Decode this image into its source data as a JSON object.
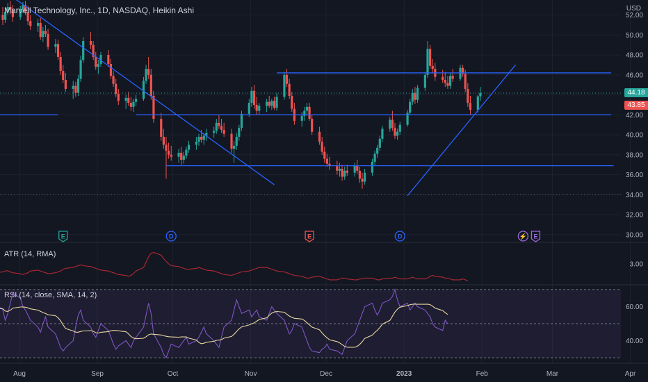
{
  "header": {
    "title": "Marvell Technology, Inc., 1D, NASDAQ, Heikin Ashi",
    "currency": "USD"
  },
  "colors": {
    "background": "#131722",
    "up": "#26a69a",
    "down": "#ef5350",
    "trendline": "#2962ff",
    "atr_line": "#b22833",
    "rsi_line": "#7e57c2",
    "rsi_sma": "#e8d9a0",
    "grid": "#1e222d",
    "axis_text": "#b2b5be"
  },
  "price_tags": {
    "close": "44.18",
    "close_color": "#26a69a",
    "prev": "43.85",
    "prev_color": "#ef5350"
  },
  "events": [
    {
      "letter": "E",
      "icon": "earnings-icon",
      "date": "2022-08-25",
      "color": "#26a69a"
    },
    {
      "letter": "D",
      "icon": "dividend-icon",
      "date": "2022-10-07",
      "color": "#2962ff"
    },
    {
      "letter": "E",
      "icon": "earnings-icon",
      "date": "2022-12-01",
      "color": "#ef5350"
    },
    {
      "letter": "D",
      "icon": "dividend-icon",
      "date": "2023-01-06",
      "color": "#2962ff"
    },
    {
      "letter": "⚡",
      "icon": "split-icon",
      "date": "2023-02-24",
      "color": "#9c6ade"
    },
    {
      "letter": "E",
      "icon": "earnings-icon",
      "date": "2023-03-01",
      "color": "#9c6ade"
    }
  ],
  "indicators": {
    "atr": {
      "title": "ATR (14, RMA)"
    },
    "rsi": {
      "title": "RSI (14, close, SMA, 14, 2)"
    }
  },
  "chart_data": [
    {
      "type": "candlestick",
      "name": "price",
      "scale": "linear",
      "ylim": [
        29.5,
        53.5
      ],
      "y_ticks": [
        "52.00",
        "50.00",
        "48.00",
        "46.00",
        "44.00",
        "42.00",
        "40.00",
        "38.00",
        "36.00",
        "34.00",
        "32.00",
        "30.00"
      ],
      "x_ticks": [
        "Aug",
        "Sep",
        "Oct",
        "Nov",
        "Dec",
        "2023",
        "Feb",
        "Mar",
        "Apr"
      ],
      "x_ticks_bold": [
        "2023"
      ],
      "x_start": "2022-08-01",
      "x_end": "2023-04-05",
      "ohlc_dates_start": "2022-07-27",
      "ohlc": [
        [
          49.0,
          51.0,
          48.5,
          50.6
        ],
        [
          50.6,
          51.8,
          50.0,
          51.2
        ],
        [
          51.2,
          52.5,
          50.8,
          52.0
        ],
        [
          52.0,
          52.8,
          51.0,
          51.5
        ],
        [
          51.5,
          52.6,
          51.2,
          52.3
        ],
        [
          52.3,
          53.2,
          52.0,
          52.8
        ],
        [
          52.8,
          53.4,
          52.1,
          52.5
        ],
        [
          52.5,
          53.0,
          51.3,
          51.8
        ],
        [
          51.8,
          52.9,
          51.5,
          52.6
        ],
        [
          52.6,
          53.3,
          52.2,
          53.0
        ],
        [
          53.0,
          53.4,
          52.0,
          52.3
        ],
        [
          52.3,
          52.9,
          51.0,
          51.4
        ],
        [
          51.4,
          52.0,
          50.5,
          50.9
        ],
        [
          50.9,
          51.6,
          50.3,
          51.2
        ],
        [
          51.2,
          51.7,
          49.5,
          49.8
        ],
        [
          49.8,
          50.8,
          49.3,
          50.4
        ],
        [
          50.4,
          51.0,
          49.8,
          50.1
        ],
        [
          50.1,
          50.6,
          48.5,
          48.8
        ],
        [
          48.8,
          49.6,
          48.2,
          49.1
        ],
        [
          49.1,
          49.5,
          47.5,
          47.8
        ],
        [
          47.8,
          48.3,
          46.0,
          46.4
        ],
        [
          46.4,
          47.0,
          45.2,
          45.5
        ],
        [
          45.5,
          46.2,
          44.3,
          44.6
        ],
        [
          44.6,
          45.4,
          43.6,
          44.9
        ],
        [
          44.9,
          45.3,
          43.8,
          44.2
        ],
        [
          44.2,
          46.0,
          43.9,
          45.6
        ],
        [
          45.6,
          47.9,
          45.3,
          47.5
        ],
        [
          47.5,
          49.8,
          47.2,
          49.4
        ],
        [
          49.4,
          50.3,
          48.6,
          49.0
        ],
        [
          49.0,
          49.4,
          47.5,
          47.8
        ],
        [
          47.8,
          48.3,
          46.5,
          46.8
        ],
        [
          46.8,
          47.5,
          46.1,
          47.1
        ],
        [
          47.1,
          48.3,
          46.8,
          48.0
        ],
        [
          48.0,
          48.5,
          46.8,
          47.1
        ],
        [
          47.1,
          47.6,
          45.6,
          45.9
        ],
        [
          45.9,
          46.4,
          44.8,
          45.1
        ],
        [
          45.1,
          45.6,
          43.8,
          44.1
        ],
        [
          44.1,
          44.6,
          43.0,
          43.4
        ],
        [
          43.4,
          44.0,
          42.6,
          43.7
        ],
        [
          43.7,
          44.3,
          42.9,
          43.2
        ],
        [
          43.2,
          43.8,
          42.4,
          42.8
        ],
        [
          42.8,
          43.6,
          42.3,
          43.3
        ],
        [
          43.3,
          44.0,
          42.9,
          43.6
        ],
        [
          43.6,
          45.8,
          43.4,
          45.4
        ],
        [
          45.4,
          47.0,
          45.1,
          46.6
        ],
        [
          46.6,
          47.8,
          45.6,
          46.0
        ],
        [
          46.0,
          46.6,
          43.5,
          43.9
        ],
        [
          43.9,
          44.4,
          41.2,
          41.6
        ],
        [
          41.6,
          42.2,
          39.4,
          39.8
        ],
        [
          39.8,
          40.6,
          38.6,
          39.0
        ],
        [
          39.0,
          39.8,
          35.6,
          38.4
        ],
        [
          38.4,
          39.2,
          37.6,
          38.0
        ],
        [
          38.0,
          38.9,
          37.4,
          37.8
        ],
        [
          37.8,
          38.6,
          37.2,
          38.2
        ],
        [
          38.2,
          38.8,
          37.0,
          37.5
        ],
        [
          37.5,
          38.3,
          37.1,
          37.9
        ],
        [
          37.9,
          38.8,
          37.6,
          38.5
        ],
        [
          38.5,
          39.4,
          38.2,
          39.0
        ],
        [
          39.0,
          39.8,
          38.5,
          39.3
        ],
        [
          39.3,
          40.1,
          38.9,
          39.8
        ],
        [
          39.8,
          40.5,
          39.2,
          39.5
        ],
        [
          39.5,
          40.2,
          39.0,
          39.9
        ],
        [
          39.9,
          40.6,
          39.4,
          40.2
        ],
        [
          40.2,
          40.8,
          39.7,
          40.4
        ],
        [
          40.4,
          41.6,
          40.1,
          41.2
        ],
        [
          41.2,
          42.0,
          40.6,
          40.9
        ],
        [
          40.9,
          41.6,
          40.2,
          40.5
        ],
        [
          40.5,
          41.2,
          39.8,
          40.1
        ],
        [
          40.1,
          40.6,
          38.2,
          38.6
        ],
        [
          38.6,
          39.4,
          37.2,
          38.9
        ],
        [
          38.9,
          40.2,
          38.5,
          39.8
        ],
        [
          39.8,
          41.0,
          39.4,
          40.7
        ],
        [
          40.7,
          42.4,
          40.4,
          42.1
        ],
        [
          42.1,
          43.6,
          41.8,
          43.2
        ],
        [
          43.2,
          44.8,
          42.8,
          44.4
        ],
        [
          44.4,
          45.0,
          42.6,
          43.0
        ],
        [
          43.0,
          43.8,
          42.0,
          42.4
        ],
        [
          42.4,
          43.2,
          42.0,
          42.9
        ],
        [
          42.9,
          43.6,
          42.3,
          43.3
        ],
        [
          43.3,
          43.9,
          42.7,
          42.9
        ],
        [
          42.9,
          43.6,
          42.5,
          43.4
        ],
        [
          43.4,
          43.8,
          42.5,
          42.7
        ],
        [
          42.7,
          44.2,
          42.4,
          43.8
        ],
        [
          43.8,
          46.3,
          43.5,
          46.0
        ],
        [
          46.0,
          46.6,
          44.8,
          45.1
        ],
        [
          45.1,
          45.6,
          43.6,
          43.9
        ],
        [
          43.9,
          44.3,
          42.3,
          42.6
        ],
        [
          42.6,
          43.2,
          41.0,
          41.4
        ],
        [
          41.4,
          42.3,
          40.8,
          41.9
        ],
        [
          41.9,
          42.8,
          41.4,
          42.4
        ],
        [
          42.4,
          43.2,
          41.9,
          42.8
        ],
        [
          42.8,
          43.2,
          41.4,
          41.6
        ],
        [
          41.6,
          42.0,
          40.0,
          40.3
        ],
        [
          40.3,
          40.8,
          39.0,
          39.3
        ],
        [
          39.3,
          39.8,
          38.0,
          38.3
        ],
        [
          38.3,
          38.8,
          37.2,
          37.6
        ],
        [
          37.6,
          38.1,
          36.8,
          37.1
        ],
        [
          37.1,
          37.8,
          36.5,
          36.9
        ],
        [
          36.9,
          37.4,
          36.0,
          36.4
        ],
        [
          36.4,
          37.2,
          35.8,
          36.6
        ],
        [
          36.6,
          37.0,
          35.4,
          35.8
        ],
        [
          35.8,
          36.8,
          35.5,
          36.4
        ],
        [
          36.4,
          37.0,
          35.9,
          36.2
        ],
        [
          36.2,
          37.2,
          35.8,
          36.9
        ],
        [
          36.9,
          37.5,
          36.1,
          36.4
        ],
        [
          36.4,
          36.8,
          35.2,
          35.6
        ],
        [
          35.6,
          36.2,
          34.6,
          35.3
        ],
        [
          35.3,
          36.6,
          35.0,
          36.2
        ],
        [
          36.2,
          37.6,
          35.9,
          37.3
        ],
        [
          37.3,
          38.4,
          37.0,
          38.1
        ],
        [
          38.1,
          39.0,
          37.7,
          38.7
        ],
        [
          38.7,
          39.9,
          38.4,
          39.6
        ],
        [
          39.6,
          40.9,
          39.3,
          40.6
        ],
        [
          40.6,
          41.8,
          40.3,
          41.5
        ],
        [
          41.5,
          42.4,
          40.4,
          40.7
        ],
        [
          40.7,
          41.2,
          39.6,
          39.9
        ],
        [
          39.9,
          40.6,
          39.5,
          40.3
        ],
        [
          40.3,
          41.3,
          40.0,
          41.0
        ],
        [
          41.0,
          42.5,
          40.8,
          42.2
        ],
        [
          42.2,
          43.6,
          42.0,
          43.3
        ],
        [
          43.3,
          44.6,
          43.0,
          44.2
        ],
        [
          44.2,
          44.8,
          43.1,
          43.5
        ],
        [
          43.5,
          45.0,
          43.2,
          44.7
        ],
        [
          44.7,
          46.3,
          44.4,
          46.0
        ],
        [
          46.0,
          49.4,
          45.7,
          48.6
        ],
        [
          48.6,
          49.0,
          46.6,
          46.9
        ],
        [
          46.9,
          47.6,
          46.2,
          46.6
        ],
        [
          46.6,
          47.2,
          45.4,
          45.8
        ],
        [
          45.8,
          46.5,
          45.2,
          45.5
        ],
        [
          45.5,
          46.3,
          44.8,
          45.2
        ],
        [
          45.2,
          45.9,
          44.6,
          44.9
        ],
        [
          44.9,
          46.2,
          44.6,
          45.9
        ],
        [
          45.9,
          46.6,
          45.3,
          45.6
        ],
        [
          45.6,
          47.0,
          45.4,
          46.7
        ],
        [
          46.7,
          47.0,
          45.8,
          46.1
        ],
        [
          46.1,
          46.5,
          44.3,
          44.6
        ],
        [
          44.6,
          45.2,
          42.8,
          43.2
        ],
        [
          43.2,
          43.9,
          42.0,
          42.5
        ],
        [
          42.5,
          44.0,
          42.2,
          43.85
        ],
        [
          43.85,
          44.8,
          43.4,
          44.18
        ]
      ]
    },
    {
      "type": "line",
      "name": "ATR (14, RMA)",
      "ylim": [
        1.9,
        4.1
      ],
      "y_ticks": [
        "3.00"
      ],
      "values": [
        2.4,
        2.45,
        2.5,
        2.55,
        2.6,
        2.62,
        2.55,
        2.5,
        2.45,
        2.4,
        2.45,
        2.5,
        2.6,
        2.65,
        2.6,
        2.55,
        2.5,
        2.45,
        2.5,
        2.55,
        2.6,
        2.7,
        2.75,
        2.8,
        2.85,
        2.9,
        2.95,
        2.9,
        2.85,
        2.8,
        2.75,
        2.7,
        2.65,
        2.6,
        2.55,
        2.5,
        2.45,
        2.4,
        2.35,
        2.3,
        2.35,
        2.45,
        2.6,
        2.8,
        3.1,
        3.4,
        3.6,
        3.65,
        3.5,
        3.3,
        3.15,
        3.0,
        2.9,
        2.85,
        2.8,
        2.75,
        2.7,
        2.7,
        2.75,
        2.8,
        2.75,
        2.7,
        2.65,
        2.6,
        2.55,
        2.5,
        2.45,
        2.4,
        2.35,
        2.4,
        2.45,
        2.5,
        2.55,
        2.6,
        2.65,
        2.7,
        2.75,
        2.8,
        2.8,
        2.75,
        2.7,
        2.65,
        2.6,
        2.55,
        2.5,
        2.45,
        2.4,
        2.35,
        2.3,
        2.25,
        2.2,
        2.2,
        2.25,
        2.3,
        2.25,
        2.2,
        2.15,
        2.1,
        2.1,
        2.15,
        2.2,
        2.2,
        2.15,
        2.1,
        2.1,
        2.15,
        2.15,
        2.2,
        2.2,
        2.15,
        2.1,
        2.1,
        2.15,
        2.2,
        2.2,
        2.25,
        2.2,
        2.15,
        2.15,
        2.2,
        2.25,
        2.2,
        2.15,
        2.15,
        2.2,
        2.3,
        2.35,
        2.3,
        2.25,
        2.2,
        2.2,
        2.15,
        2.1,
        2.1,
        2.15,
        2.1,
        2.05
      ]
    },
    {
      "type": "line",
      "name": "RSI (14, close, SMA, 14, 2)",
      "ylim": [
        28,
        72
      ],
      "y_ticks": [
        "60.00",
        "40.00"
      ],
      "bands": [
        30,
        50,
        70
      ],
      "rsi": [
        55,
        60,
        62,
        58,
        52,
        56,
        62,
        68,
        65,
        60,
        58,
        55,
        52,
        48,
        45,
        50,
        54,
        48,
        44,
        40,
        36,
        34,
        36,
        40,
        48,
        55,
        58,
        52,
        48,
        44,
        42,
        46,
        50,
        46,
        42,
        38,
        35,
        37,
        40,
        38,
        36,
        40,
        42,
        48,
        55,
        62,
        56,
        44,
        36,
        32,
        30,
        34,
        38,
        36,
        38,
        40,
        42,
        38,
        40,
        42,
        45,
        48,
        44,
        40,
        38,
        36,
        42,
        48,
        52,
        58,
        64,
        60,
        56,
        58,
        54,
        56,
        58,
        54,
        52,
        56,
        60,
        58,
        56,
        52,
        48,
        44,
        46,
        50,
        48,
        44,
        40,
        36,
        34,
        33,
        35,
        36,
        38,
        35,
        34,
        33,
        32,
        36,
        40,
        44,
        48,
        52,
        56,
        60,
        62,
        58,
        55,
        58,
        62,
        64,
        66,
        70,
        64,
        60,
        62,
        58,
        60,
        62,
        60,
        58,
        56,
        54,
        50,
        48,
        46,
        52,
        50
      ]
    }
  ]
}
